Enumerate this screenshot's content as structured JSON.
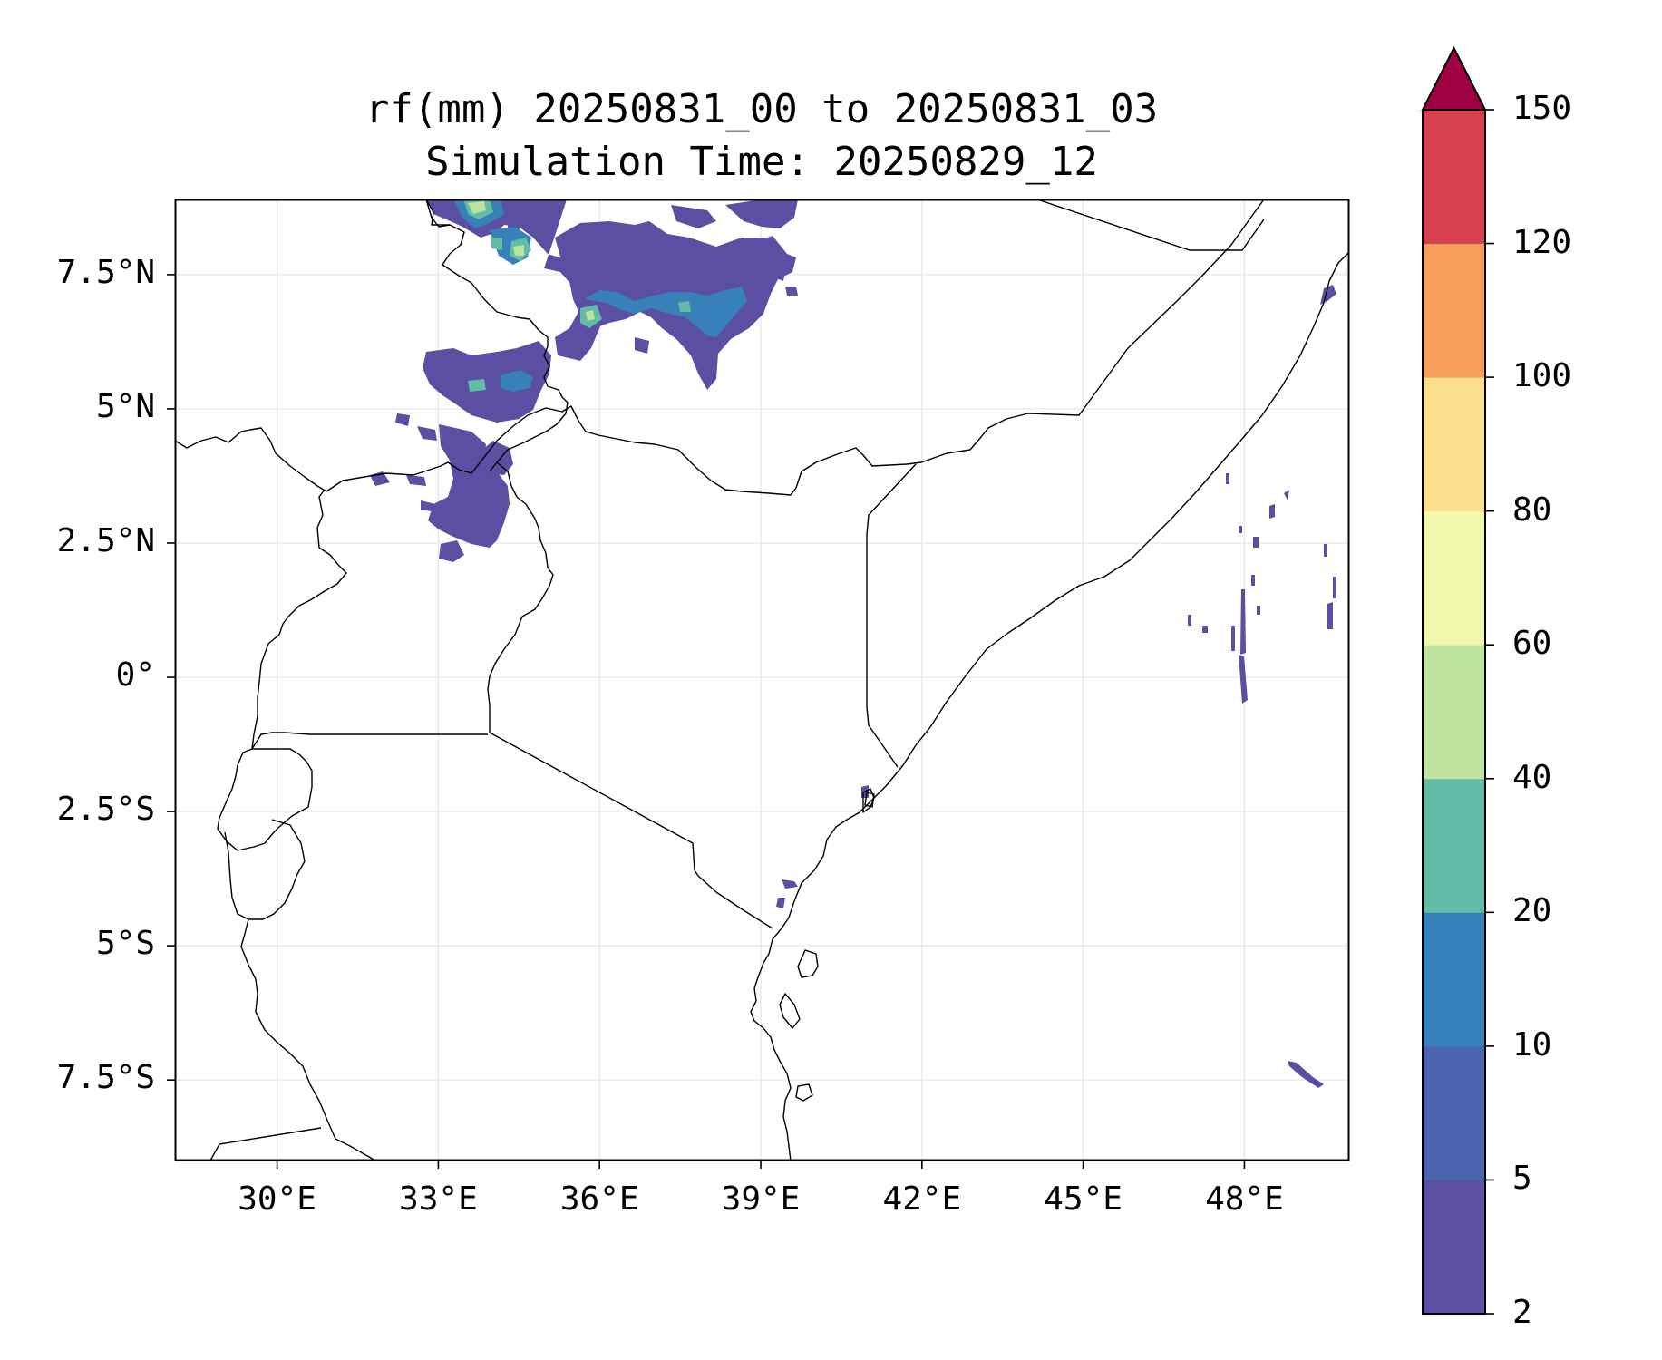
{
  "title": {
    "line1": "rf(mm) 20250831_00 to 20250831_03",
    "line2": "Simulation Time: 20250829_12"
  },
  "map": {
    "lat_range": [
      -9.0,
      8.9
    ],
    "lon_range": [
      28.1,
      49.95
    ],
    "lat_ticks": [
      {
        "value": 7.5,
        "label": "7.5°N"
      },
      {
        "value": 5,
        "label": "5°N"
      },
      {
        "value": 2.5,
        "label": "2.5°N"
      },
      {
        "value": 0,
        "label": "0°"
      },
      {
        "value": -2.5,
        "label": "2.5°S"
      },
      {
        "value": -5,
        "label": "5°S"
      },
      {
        "value": -7.5,
        "label": "7.5°S"
      }
    ],
    "lon_ticks": [
      {
        "value": 30,
        "label": "30°E"
      },
      {
        "value": 33,
        "label": "33°E"
      },
      {
        "value": 36,
        "label": "36°E"
      },
      {
        "value": 39,
        "label": "39°E"
      },
      {
        "value": 42,
        "label": "42°E"
      },
      {
        "value": 45,
        "label": "45°E"
      },
      {
        "value": 48,
        "label": "48°E"
      }
    ],
    "gridlines": true
  },
  "colorbar": {
    "levels": [
      "2",
      "5",
      "10",
      "20",
      "40",
      "60",
      "80",
      "100",
      "120",
      "150"
    ],
    "colors": [
      "#5a4fa2",
      "#4a64ad",
      "#3780b9",
      "#63bca6",
      "#bfe4a0",
      "#f1f8ab",
      "#fbdf8f",
      "#f99e5b",
      "#d6404e"
    ],
    "extend_color": "#9e0142",
    "extend": "max"
  }
}
